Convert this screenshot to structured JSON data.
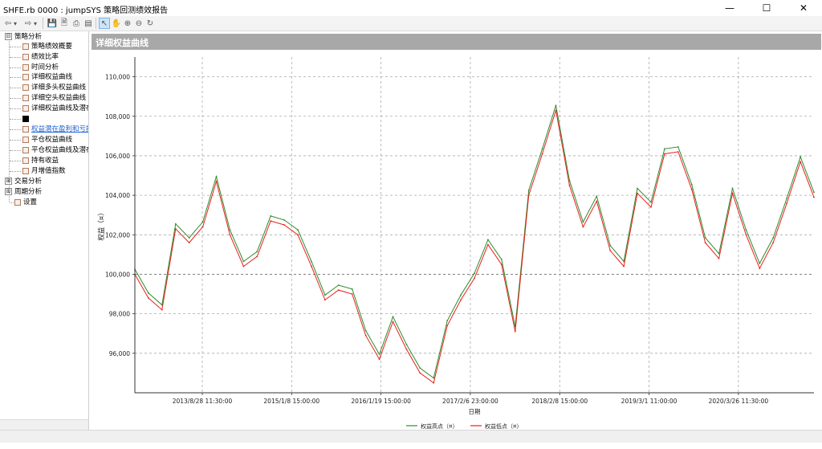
{
  "window": {
    "title": "SHFE.rb 0000 : jumpSYS 策略回测绩效报告",
    "minimize": "—",
    "maximize": "☐",
    "close": "✕"
  },
  "toolbar": {
    "back": "⇦",
    "back_dd": "▾",
    "forward": "⇨",
    "forward_dd": "▾",
    "save": "💾",
    "preview": "🗎",
    "print": "⎙",
    "export": "▤",
    "pointer": "↖",
    "pan": "✋",
    "zoom_in": "⊕",
    "zoom_out": "⊖",
    "refresh": "↻"
  },
  "tree": {
    "groups": [
      {
        "label": "策略分析",
        "expander": "⊟"
      },
      {
        "label": "交易分析",
        "expander": "⊞"
      },
      {
        "label": "周期分析",
        "expander": "⊞"
      }
    ],
    "items": [
      {
        "label": "策略绩效概要"
      },
      {
        "label": "绩效比率"
      },
      {
        "label": "时间分析"
      },
      {
        "label": "详细权益曲线"
      },
      {
        "label": "详细多头权益曲线"
      },
      {
        "label": "详细空头权益曲线"
      },
      {
        "label": "详细权益曲线及潜在"
      },
      {
        "label": ""
      },
      {
        "label": "权益潜在盈利和亏损"
      },
      {
        "label": "平仓权益曲线"
      },
      {
        "label": "平仓权益曲线及潜在"
      },
      {
        "label": "持有收益"
      },
      {
        "label": "月增值指数"
      }
    ],
    "settings": "设置"
  },
  "panel": {
    "title": "详细权益曲线"
  },
  "chart_data": {
    "type": "line",
    "ylabel": "权益（¤）",
    "xlabel": "日期",
    "ylim": [
      94000,
      111000
    ],
    "y_ticks": [
      "96,000",
      "98,000",
      "100,000",
      "102,000",
      "104,000",
      "106,000",
      "108,000",
      "110,000"
    ],
    "y_tick_values": [
      96000,
      98000,
      100000,
      102000,
      104000,
      106000,
      108000,
      110000
    ],
    "x_ticks": [
      "2013/8/28 11:30:00",
      "2015/1/8 15:00:00",
      "2016/1/19 15:00:00",
      "2017/2/6 23:00:00",
      "2018/2/8 15:00:00",
      "2019/3/1 11:00:00",
      "2020/3/26 11:30:00"
    ],
    "grid": true,
    "legend_position": "bottom",
    "series": [
      {
        "name": "权益高点（¤）",
        "color": "#2e8b2e"
      },
      {
        "name": "权益低点（¤）",
        "color": "#e8211c"
      }
    ],
    "x_index": [
      0,
      2,
      4,
      6,
      8,
      10,
      12,
      14,
      16,
      18,
      20,
      22,
      24,
      26,
      28,
      30,
      32,
      34,
      36,
      38,
      40,
      42,
      44,
      46,
      48,
      50,
      52,
      54,
      56,
      58,
      60,
      62,
      64,
      66,
      68,
      70,
      72,
      74,
      76,
      78,
      80,
      82,
      84,
      86,
      88,
      90,
      92,
      94,
      96,
      98,
      100
    ],
    "values": [
      100000,
      98800,
      98200,
      102300,
      101600,
      102400,
      104700,
      102000,
      100400,
      100900,
      102700,
      102500,
      102000,
      100400,
      98700,
      99200,
      99000,
      96900,
      95700,
      97600,
      96200,
      95000,
      94500,
      97400,
      98700,
      99800,
      101500,
      100500,
      97100,
      104000,
      106100,
      108300,
      104500,
      102400,
      103700,
      101200,
      100400,
      104100,
      103400,
      106100,
      106200,
      104300,
      101600,
      100800,
      104100,
      102000,
      100300,
      101600,
      103600,
      105700,
      103900
    ]
  }
}
